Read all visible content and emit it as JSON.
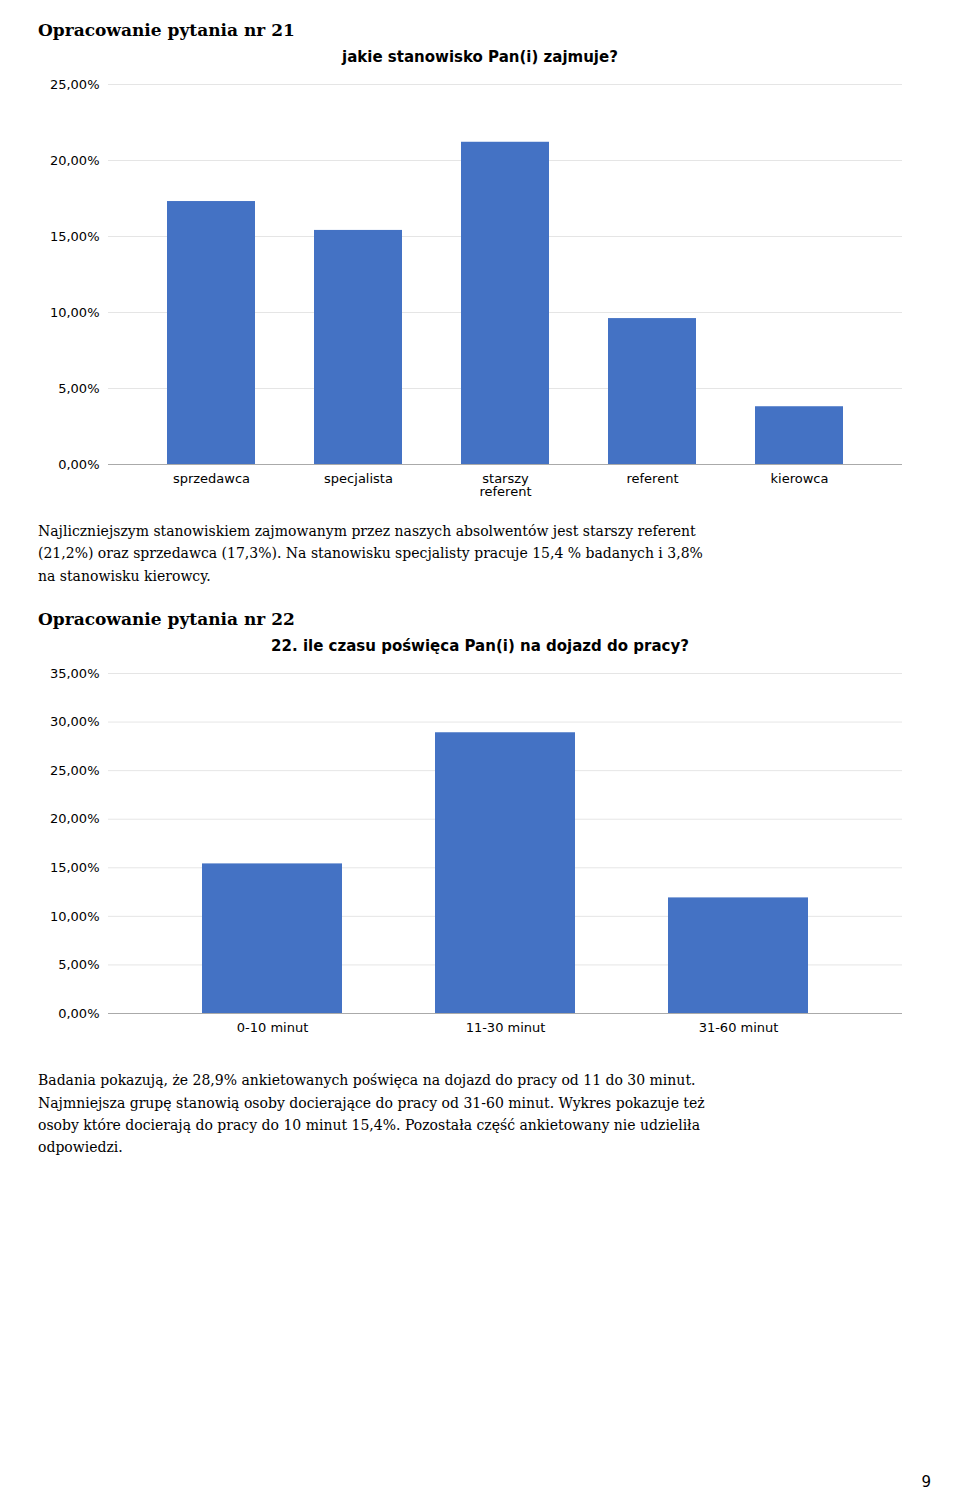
{
  "headings": [
    "Opracowanie pytania nr 21",
    "Opracowanie pytania nr 22"
  ],
  "paragraphs": [
    "Najliczniejszym stanowiskiem zajmowanym przez naszych absolwentów jest starszy referent\n(21,2%) oraz sprzedawca (17,3%). Na stanowisku specjalisty pracuje 15,4 % badanych i 3,8%\nna stanowisku kierowcy.",
    "Badania pokazują, że 28,9% ankietowanych poświęca na dojazd do pracy od 11 do 30 minut.\nNajmniejsza grupę stanowią osoby docierające do pracy od 31-60 minut. Wykres pokazuje też\nosoby które docierają do pracy do 10 minut 15,4%. Pozostała część ankietowany nie udzieliła\nodpowiedzi."
  ],
  "page_number": "9",
  "chart_data": [
    {
      "type": "bar",
      "title": "jakie stanowisko Pan(i) zajmuje?",
      "categories": [
        "sprzedawca",
        "specjalista",
        "starszy\nreferent",
        "referent",
        "kierowca"
      ],
      "values": [
        0.173,
        0.154,
        0.212,
        0.096,
        0.038
      ],
      "color": "#4472C4",
      "ylim": [
        0.0,
        0.25
      ],
      "yticks": [
        {
          "value": 0.0,
          "label": "0,00%"
        },
        {
          "value": 0.05,
          "label": "5,00%"
        },
        {
          "value": 0.1,
          "label": "10,00%"
        },
        {
          "value": 0.15,
          "label": "15,00%"
        },
        {
          "value": 0.2,
          "label": "20,00%"
        },
        {
          "value": 0.25,
          "label": "25,00%"
        }
      ],
      "grid": true
    },
    {
      "type": "bar",
      "title": "22. ile czasu poświęca Pan(i) na dojazd do pracy?",
      "categories": [
        "0-10 minut",
        "11-30 minut",
        "31-60 minut"
      ],
      "values": [
        0.154,
        0.289,
        0.119
      ],
      "color": "#4472C4",
      "ylim": [
        0.0,
        0.35
      ],
      "yticks": [
        {
          "value": 0.0,
          "label": "0,00%"
        },
        {
          "value": 0.05,
          "label": "5,00%"
        },
        {
          "value": 0.1,
          "label": "10,00%"
        },
        {
          "value": 0.15,
          "label": "15,00%"
        },
        {
          "value": 0.2,
          "label": "20,00%"
        },
        {
          "value": 0.25,
          "label": "25,00%"
        },
        {
          "value": 0.3,
          "label": "30,00%"
        },
        {
          "value": 0.35,
          "label": "35,00%"
        }
      ],
      "grid": true
    }
  ]
}
